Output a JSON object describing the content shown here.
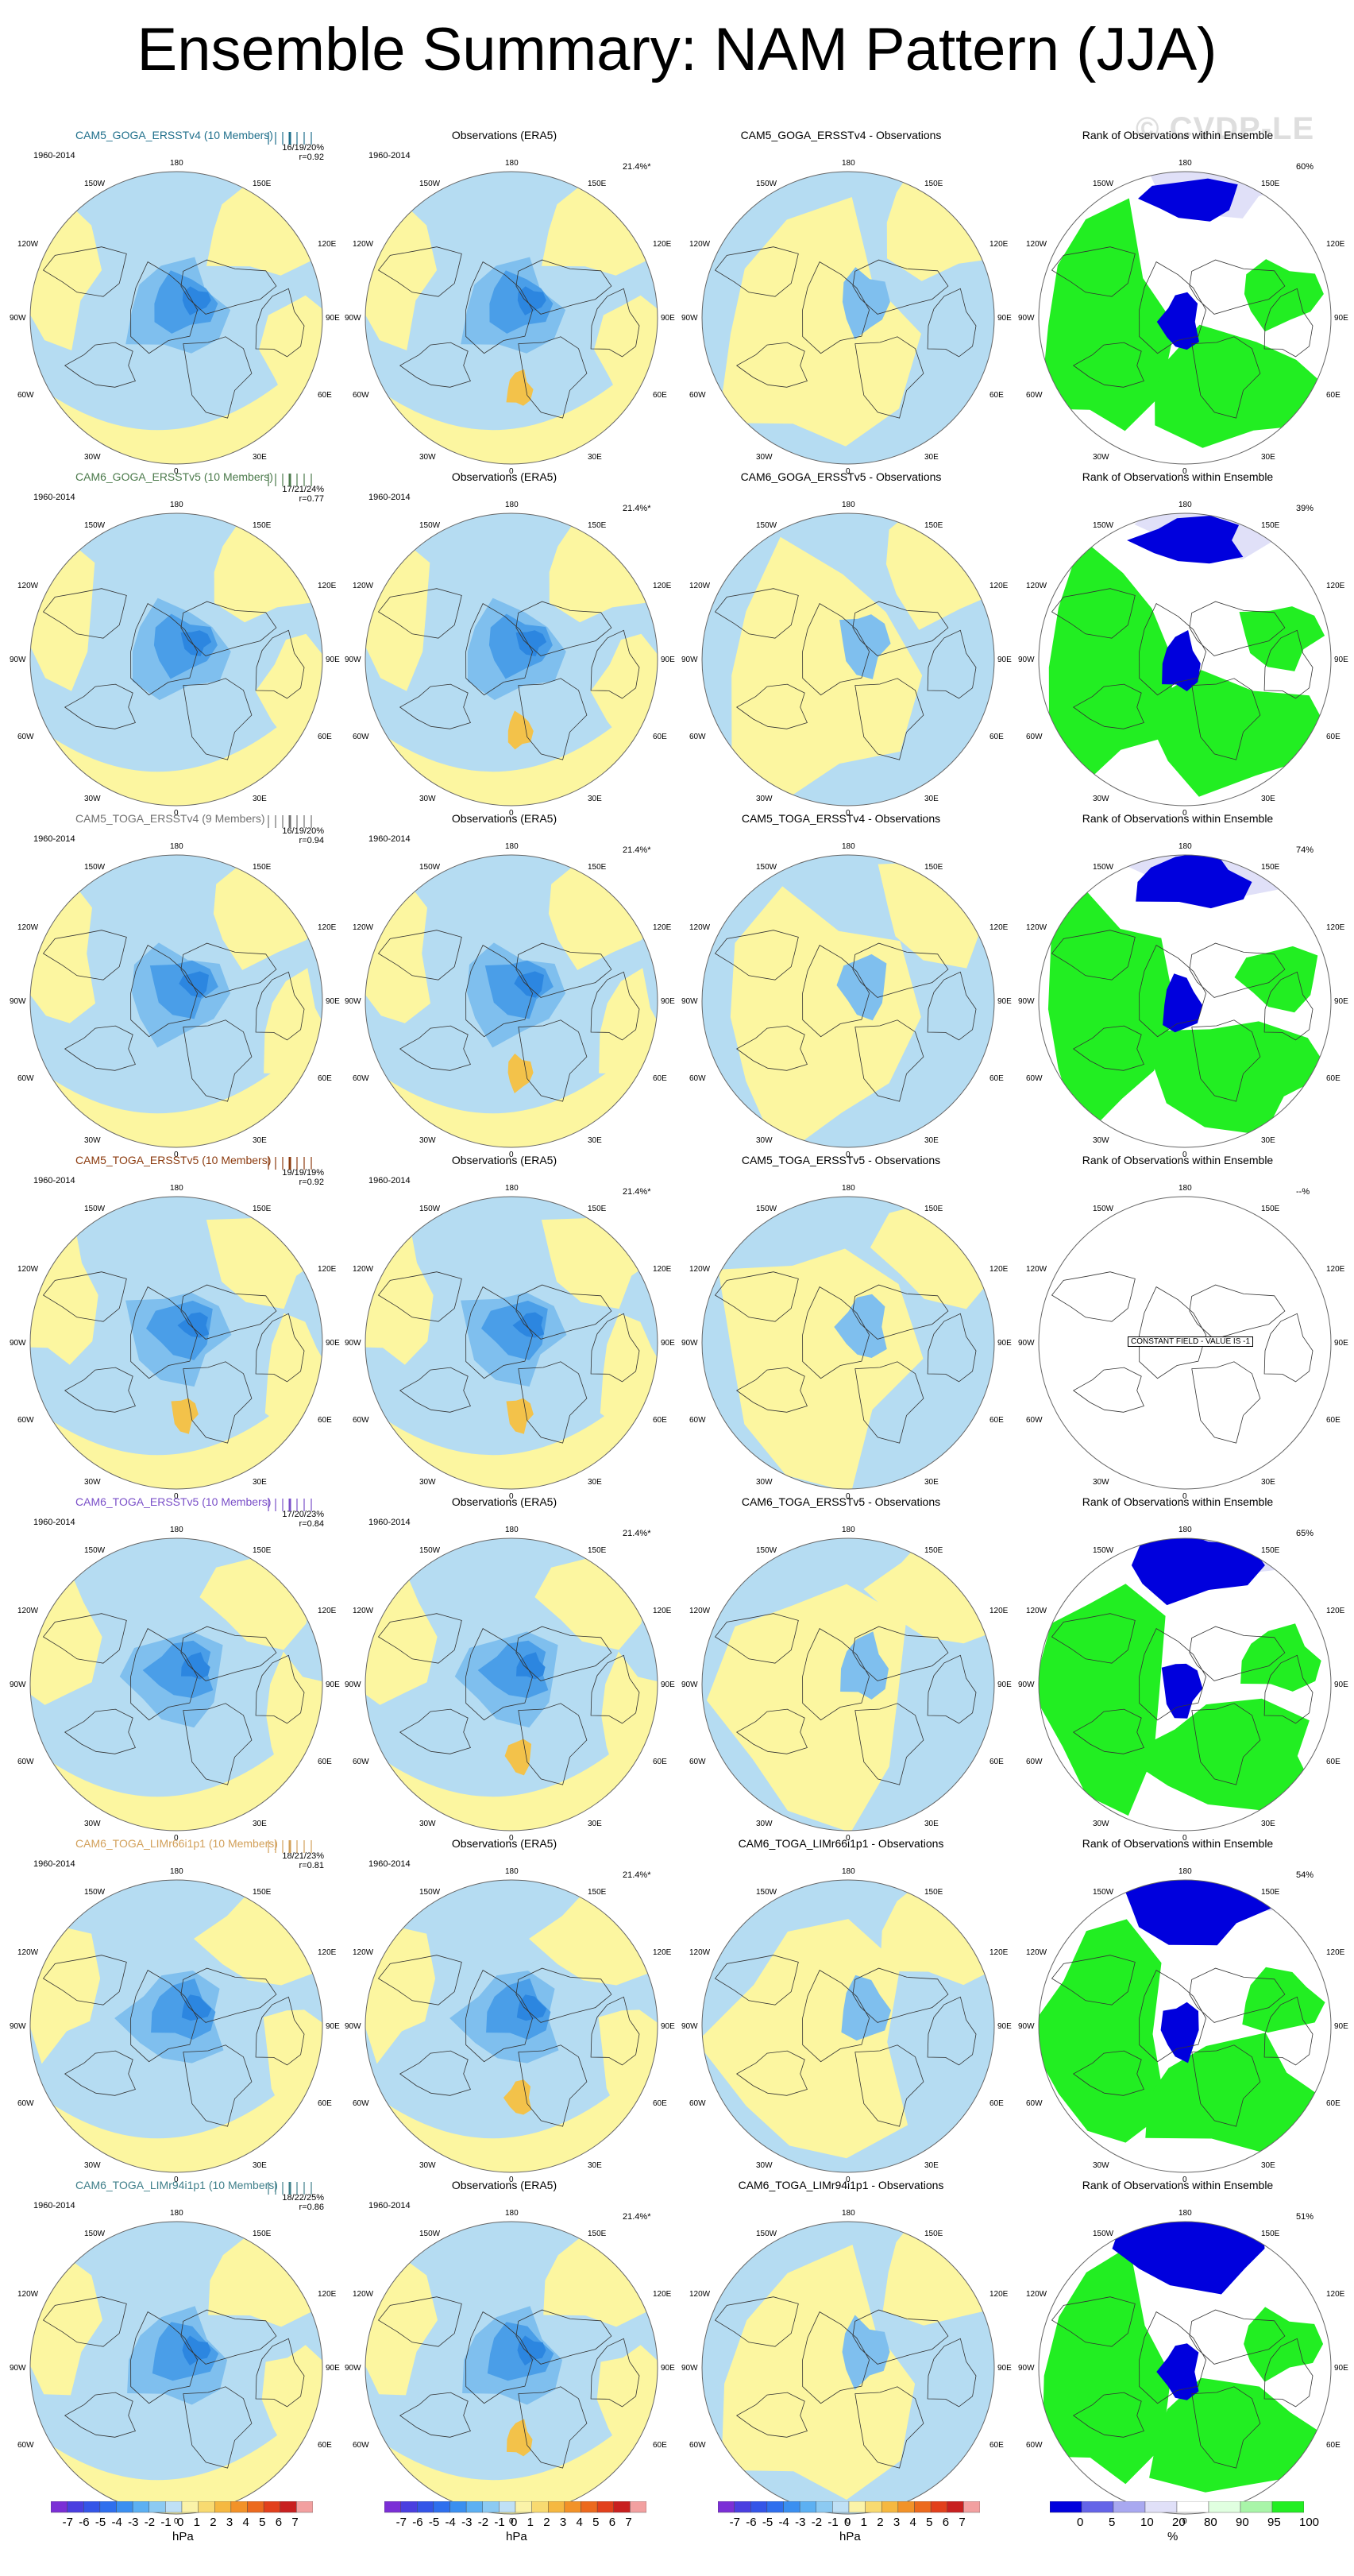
{
  "title": "Ensemble Summary: NAM Pattern (JJA)",
  "watermark": "© CVDP-LE",
  "period": "1960-2014",
  "obs_title": "Observations (ERA5)",
  "obs_pct": "21.4%*",
  "rank_title": "Rank of Observations within Ensemble",
  "constant_field_label": "CONSTANT FIELD - VALUE IS -1",
  "lon_labels": {
    "n180": "180",
    "nw150": "150W",
    "ne150": "150E",
    "w120": "120W",
    "e120": "120E",
    "w90": "90W",
    "e90": "90E",
    "w60": "60W",
    "e60": "60E",
    "w30": "30W",
    "e30": "30E",
    "s0": "0"
  },
  "rows": [
    {
      "model": "CAM5_GOGA_ERSSTv4 (10 Members)",
      "color": "#1f6f8b",
      "stats": "16/19/20%",
      "r": "r=0.92",
      "diff": "CAM5_GOGA_ERSSTv4 - Observations",
      "rank_pct": "60%"
    },
    {
      "model": "CAM6_GOGA_ERSSTv5 (10 Members)",
      "color": "#4b7a4b",
      "stats": "17/21/24%",
      "r": "r=0.77",
      "diff": "CAM6_GOGA_ERSSTv5 - Observations",
      "rank_pct": "39%"
    },
    {
      "model": "CAM5_TOGA_ERSSTv4 (9 Members)",
      "color": "#707070",
      "stats": "16/19/20%",
      "r": "r=0.94",
      "diff": "CAM5_TOGA_ERSSTv4 - Observations",
      "rank_pct": "74%"
    },
    {
      "model": "CAM5_TOGA_ERSSTv5 (10 Members)",
      "color": "#8b3a0e",
      "stats": "19/19/19%",
      "r": "r=0.92",
      "diff": "CAM5_TOGA_ERSSTv5 - Observations",
      "rank_pct": "--%"
    },
    {
      "model": "CAM6_TOGA_ERSSTv5 (10 Members)",
      "color": "#7a4fc8",
      "stats": "17/20/23%",
      "r": "r=0.84",
      "diff": "CAM6_TOGA_ERSSTv5 - Observations",
      "rank_pct": "65%"
    },
    {
      "model": "CAM6_TOGA_LIMr66i1p1 (10 Members)",
      "color": "#d2a05a",
      "stats": "18/21/23%",
      "r": "r=0.81",
      "diff": "CAM6_TOGA_LIMr66i1p1 - Observations",
      "rank_pct": "54%"
    },
    {
      "model": "CAM6_TOGA_LIMr94i1p1 (10 Members)",
      "color": "#3f7f8a",
      "stats": "18/22/25%",
      "r": "r=0.86",
      "diff": "CAM6_TOGA_LIMr94i1p1 - Observations",
      "rank_pct": "51%"
    }
  ],
  "colorbar_hpa": {
    "unit": "hPa",
    "labels": [
      "-7",
      "-6",
      "-5",
      "-4",
      "-3",
      "-2",
      "-1",
      "0",
      "1",
      "2",
      "3",
      "4",
      "5",
      "6",
      "7"
    ],
    "colors": [
      "#7b2fd6",
      "#4a3fe0",
      "#3455e8",
      "#2f6fee",
      "#3a8ff0",
      "#5cb0f2",
      "#8ccaf2",
      "#bfe0f5",
      "#fbf3a8",
      "#f8da70",
      "#f5b840",
      "#f29228",
      "#ec6a1e",
      "#e2401c",
      "#c82020",
      "#f2a0a0"
    ]
  },
  "colorbar_pct": {
    "unit": "%",
    "labels": [
      "0",
      "5",
      "10",
      "20",
      "80",
      "90",
      "95",
      "100"
    ],
    "colors": [
      "#0000dd",
      "#6464e8",
      "#a8a8f0",
      "#e0e0f8",
      "#ffffff",
      "#e0ffe0",
      "#a8f5a8",
      "#22ee22"
    ]
  }
}
